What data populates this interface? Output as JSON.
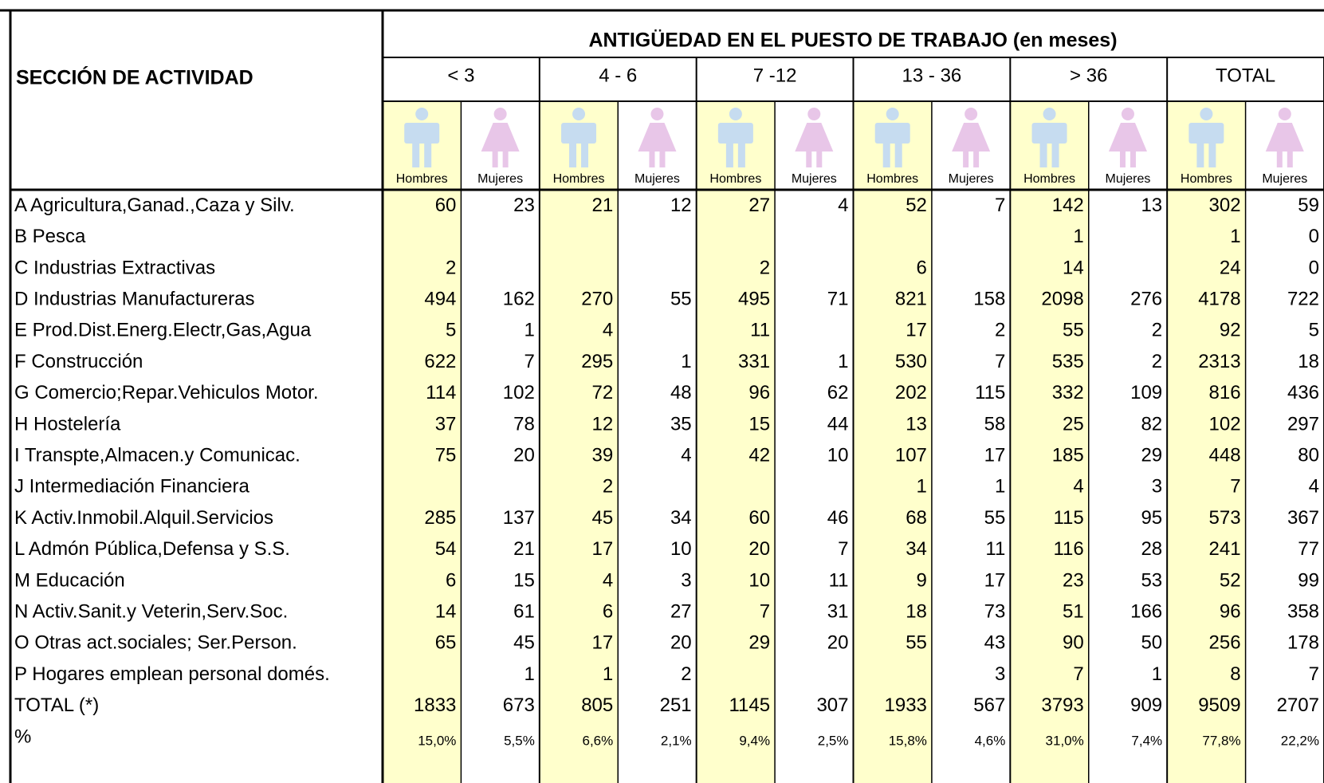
{
  "table": {
    "section_label": "SECCIÓN DE ACTIVIDAD",
    "title": "ANTIGÜEDAD EN EL PUESTO DE TRABAJO (en meses)",
    "groups": [
      "<  3",
      "4 - 6",
      "7 -12",
      "13 - 36",
      "> 36",
      "TOTAL"
    ],
    "genders": [
      "Hombres",
      "Mujeres"
    ],
    "rows": [
      {
        "label": "A Agricultura,Ganad.,Caza y Silv.",
        "values": [
          60,
          23,
          21,
          12,
          27,
          4,
          52,
          7,
          142,
          13,
          302,
          59
        ]
      },
      {
        "label": "B Pesca",
        "values": [
          null,
          null,
          null,
          null,
          null,
          null,
          null,
          null,
          1,
          null,
          1,
          0
        ]
      },
      {
        "label": "C Industrias Extractivas",
        "values": [
          2,
          null,
          null,
          null,
          2,
          null,
          6,
          null,
          14,
          null,
          24,
          0
        ]
      },
      {
        "label": "D Industrias Manufactureras",
        "values": [
          494,
          162,
          270,
          55,
          495,
          71,
          821,
          158,
          2098,
          276,
          4178,
          722
        ]
      },
      {
        "label": "E Prod.Dist.Energ.Electr,Gas,Agua",
        "values": [
          5,
          1,
          4,
          null,
          11,
          null,
          17,
          2,
          55,
          2,
          92,
          5
        ]
      },
      {
        "label": "F Construcción",
        "values": [
          622,
          7,
          295,
          1,
          331,
          1,
          530,
          7,
          535,
          2,
          2313,
          18
        ]
      },
      {
        "label": "G Comercio;Repar.Vehiculos Motor.",
        "values": [
          114,
          102,
          72,
          48,
          96,
          62,
          202,
          115,
          332,
          109,
          816,
          436
        ]
      },
      {
        "label": "H Hostelería",
        "values": [
          37,
          78,
          12,
          35,
          15,
          44,
          13,
          58,
          25,
          82,
          102,
          297
        ]
      },
      {
        "label": "I Transpte,Almacen.y Comunicac.",
        "values": [
          75,
          20,
          39,
          4,
          42,
          10,
          107,
          17,
          185,
          29,
          448,
          80
        ]
      },
      {
        "label": "J Intermediación Financiera",
        "values": [
          null,
          null,
          2,
          null,
          null,
          null,
          1,
          1,
          4,
          3,
          7,
          4
        ]
      },
      {
        "label": "K Activ.Inmobil.Alquil.Servicios",
        "values": [
          285,
          137,
          45,
          34,
          60,
          46,
          68,
          55,
          115,
          95,
          573,
          367
        ]
      },
      {
        "label": "L Admón Pública,Defensa y S.S.",
        "values": [
          54,
          21,
          17,
          10,
          20,
          7,
          34,
          11,
          116,
          28,
          241,
          77
        ]
      },
      {
        "label": "M Educación",
        "values": [
          6,
          15,
          4,
          3,
          10,
          11,
          9,
          17,
          23,
          53,
          52,
          99
        ]
      },
      {
        "label": "N Activ.Sanit.y Veterin,Serv.Soc.",
        "values": [
          14,
          61,
          6,
          27,
          7,
          31,
          18,
          73,
          51,
          166,
          96,
          358
        ]
      },
      {
        "label": "O Otras act.sociales; Ser.Person.",
        "values": [
          65,
          45,
          17,
          20,
          29,
          20,
          55,
          43,
          90,
          50,
          256,
          178
        ]
      },
      {
        "label": "P Hogares emplean personal domés.",
        "values": [
          null,
          1,
          1,
          2,
          null,
          null,
          null,
          3,
          7,
          1,
          8,
          7
        ]
      },
      {
        "label": "TOTAL (*)",
        "values": [
          1833,
          673,
          805,
          251,
          1145,
          307,
          1933,
          567,
          3793,
          909,
          9509,
          2707
        ]
      },
      {
        "label": "%",
        "values": [
          "15,0%",
          "5,5%",
          "6,6%",
          "2,1%",
          "9,4%",
          "2,5%",
          "15,8%",
          "4,6%",
          "31,0%",
          "7,4%",
          "77,8%",
          "22,2%"
        ]
      }
    ]
  }
}
